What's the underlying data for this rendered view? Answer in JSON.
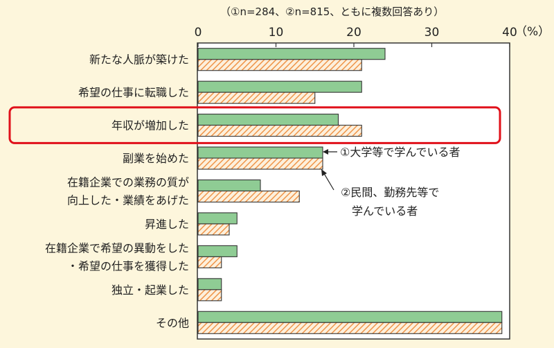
{
  "chart_data": {
    "type": "bar",
    "orientation": "horizontal",
    "note": "（①n=284、②n=815、ともに複数回答あり）",
    "unit": "（%）",
    "xlim": [
      0,
      40
    ],
    "ticks": [
      "0",
      "10",
      "20",
      "30",
      "40"
    ],
    "categories": [
      [
        "新たな人脈が築けた"
      ],
      [
        "希望の仕事に転職した"
      ],
      [
        "年収が増加した"
      ],
      [
        "副業を始めた"
      ],
      [
        "在籍企業での業務の質が",
        "向上した・業績をあげた"
      ],
      [
        "昇進した"
      ],
      [
        "在籍企業で希望の異動をした",
        "・希望の仕事を獲得した"
      ],
      [
        "独立・起業した"
      ],
      [
        "その他"
      ]
    ],
    "series": [
      {
        "name": "①大学等で学んでいる者",
        "values": [
          24,
          21,
          18,
          16,
          8,
          5,
          5,
          3,
          39
        ],
        "color": "#8fcc94"
      },
      {
        "name": "②民間、勤務先等で学んでいる者",
        "values": [
          21,
          15,
          21,
          16,
          13,
          4,
          3,
          3,
          39
        ],
        "color": "#f2a25a"
      }
    ],
    "series2_label_lines": [
      "②民間、勤務先等で",
      "学んでいる者"
    ],
    "highlight_index": 2,
    "highlight_color": "#e0101a"
  }
}
